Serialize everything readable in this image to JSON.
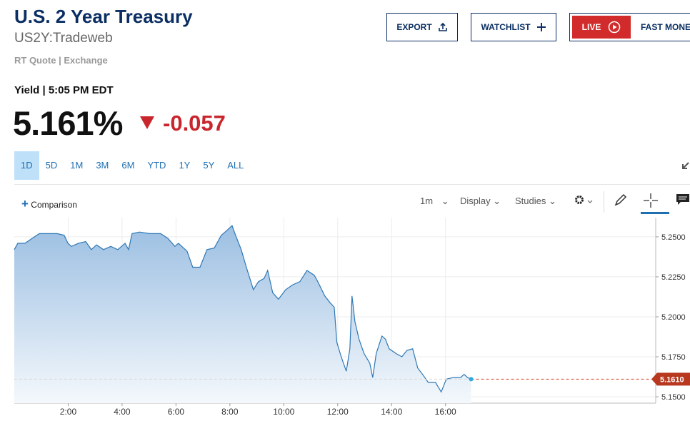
{
  "header": {
    "title": "U.S. 2 Year Treasury",
    "symbol": "US2Y:Tradeweb",
    "source": "RT Quote | Exchange"
  },
  "buttons": {
    "export": "EXPORT",
    "watchlist": "WATCHLIST",
    "live": "LIVE",
    "fast_money": "FAST MONEY"
  },
  "quote": {
    "label": "Yield | 5:05 PM EDT",
    "last": "5.161%",
    "change": "-0.057"
  },
  "ranges": {
    "items": [
      "1D",
      "5D",
      "1M",
      "3M",
      "6M",
      "YTD",
      "1Y",
      "5Y",
      "ALL"
    ],
    "selected_index": 0
  },
  "toolbar": {
    "comparison": "Comparison",
    "interval": "1m",
    "display": "Display",
    "studies": "Studies"
  },
  "chart_data": {
    "type": "area",
    "color": "#2f78b5",
    "x": [
      0.0,
      0.13,
      0.4,
      0.66,
      0.93,
      1.19,
      1.59,
      1.85,
      1.99,
      2.12,
      2.38,
      2.65,
      2.86,
      3.05,
      3.31,
      3.58,
      3.84,
      4.11,
      4.24,
      4.37,
      4.64,
      5.03,
      5.43,
      5.7,
      5.96,
      6.09,
      6.41,
      6.62,
      6.89,
      7.15,
      7.42,
      7.68,
      7.89,
      8.08,
      8.21,
      8.42,
      8.61,
      8.87,
      9.06,
      9.27,
      9.4,
      9.59,
      9.8,
      10.07,
      10.33,
      10.6,
      10.86,
      11.13,
      11.26,
      11.52,
      11.71,
      11.87,
      11.97,
      12.13,
      12.32,
      12.45,
      12.53,
      12.64,
      12.79,
      12.98,
      13.19,
      13.3,
      13.43,
      13.64,
      13.77,
      13.91,
      14.17,
      14.38,
      14.57,
      14.78,
      14.97,
      15.15,
      15.36,
      15.63,
      15.84,
      16.03,
      16.29,
      16.56,
      16.69,
      16.82,
      16.95
    ],
    "values": [
      5.242,
      5.246,
      5.246,
      5.249,
      5.252,
      5.252,
      5.252,
      5.251,
      5.246,
      5.244,
      5.246,
      5.247,
      5.242,
      5.245,
      5.242,
      5.244,
      5.242,
      5.246,
      5.242,
      5.252,
      5.253,
      5.252,
      5.252,
      5.249,
      5.244,
      5.246,
      5.241,
      5.231,
      5.231,
      5.242,
      5.243,
      5.251,
      5.254,
      5.257,
      5.251,
      5.242,
      5.231,
      5.217,
      5.222,
      5.224,
      5.229,
      5.215,
      5.211,
      5.217,
      5.22,
      5.222,
      5.229,
      5.226,
      5.222,
      5.213,
      5.209,
      5.206,
      5.184,
      5.175,
      5.166,
      5.18,
      5.213,
      5.197,
      5.186,
      5.177,
      5.171,
      5.162,
      5.177,
      5.188,
      5.186,
      5.18,
      5.177,
      5.175,
      5.179,
      5.18,
      5.168,
      5.164,
      5.159,
      5.159,
      5.153,
      5.161,
      5.162,
      5.162,
      5.164,
      5.162,
      5.161
    ],
    "xlim": [
      0,
      23.8
    ],
    "xticks": [
      {
        "value": 2,
        "label": "2:00"
      },
      {
        "value": 4,
        "label": "4:00"
      },
      {
        "value": 6,
        "label": "6:00"
      },
      {
        "value": 8,
        "label": "8:00"
      },
      {
        "value": 10,
        "label": "10:00"
      },
      {
        "value": 12,
        "label": "12:00"
      },
      {
        "value": 14,
        "label": "14:00"
      },
      {
        "value": 16,
        "label": "16:00"
      }
    ],
    "ylim": [
      5.146,
      5.262
    ],
    "yticks": [
      {
        "value": 5.15,
        "label": "5.1500"
      },
      {
        "value": 5.175,
        "label": "5.1750"
      },
      {
        "value": 5.2,
        "label": "5.2000"
      },
      {
        "value": 5.225,
        "label": "5.2250"
      },
      {
        "value": 5.25,
        "label": "5.2500"
      }
    ],
    "grid": true,
    "last_value": {
      "value": 5.161,
      "label": "5.1610"
    }
  }
}
